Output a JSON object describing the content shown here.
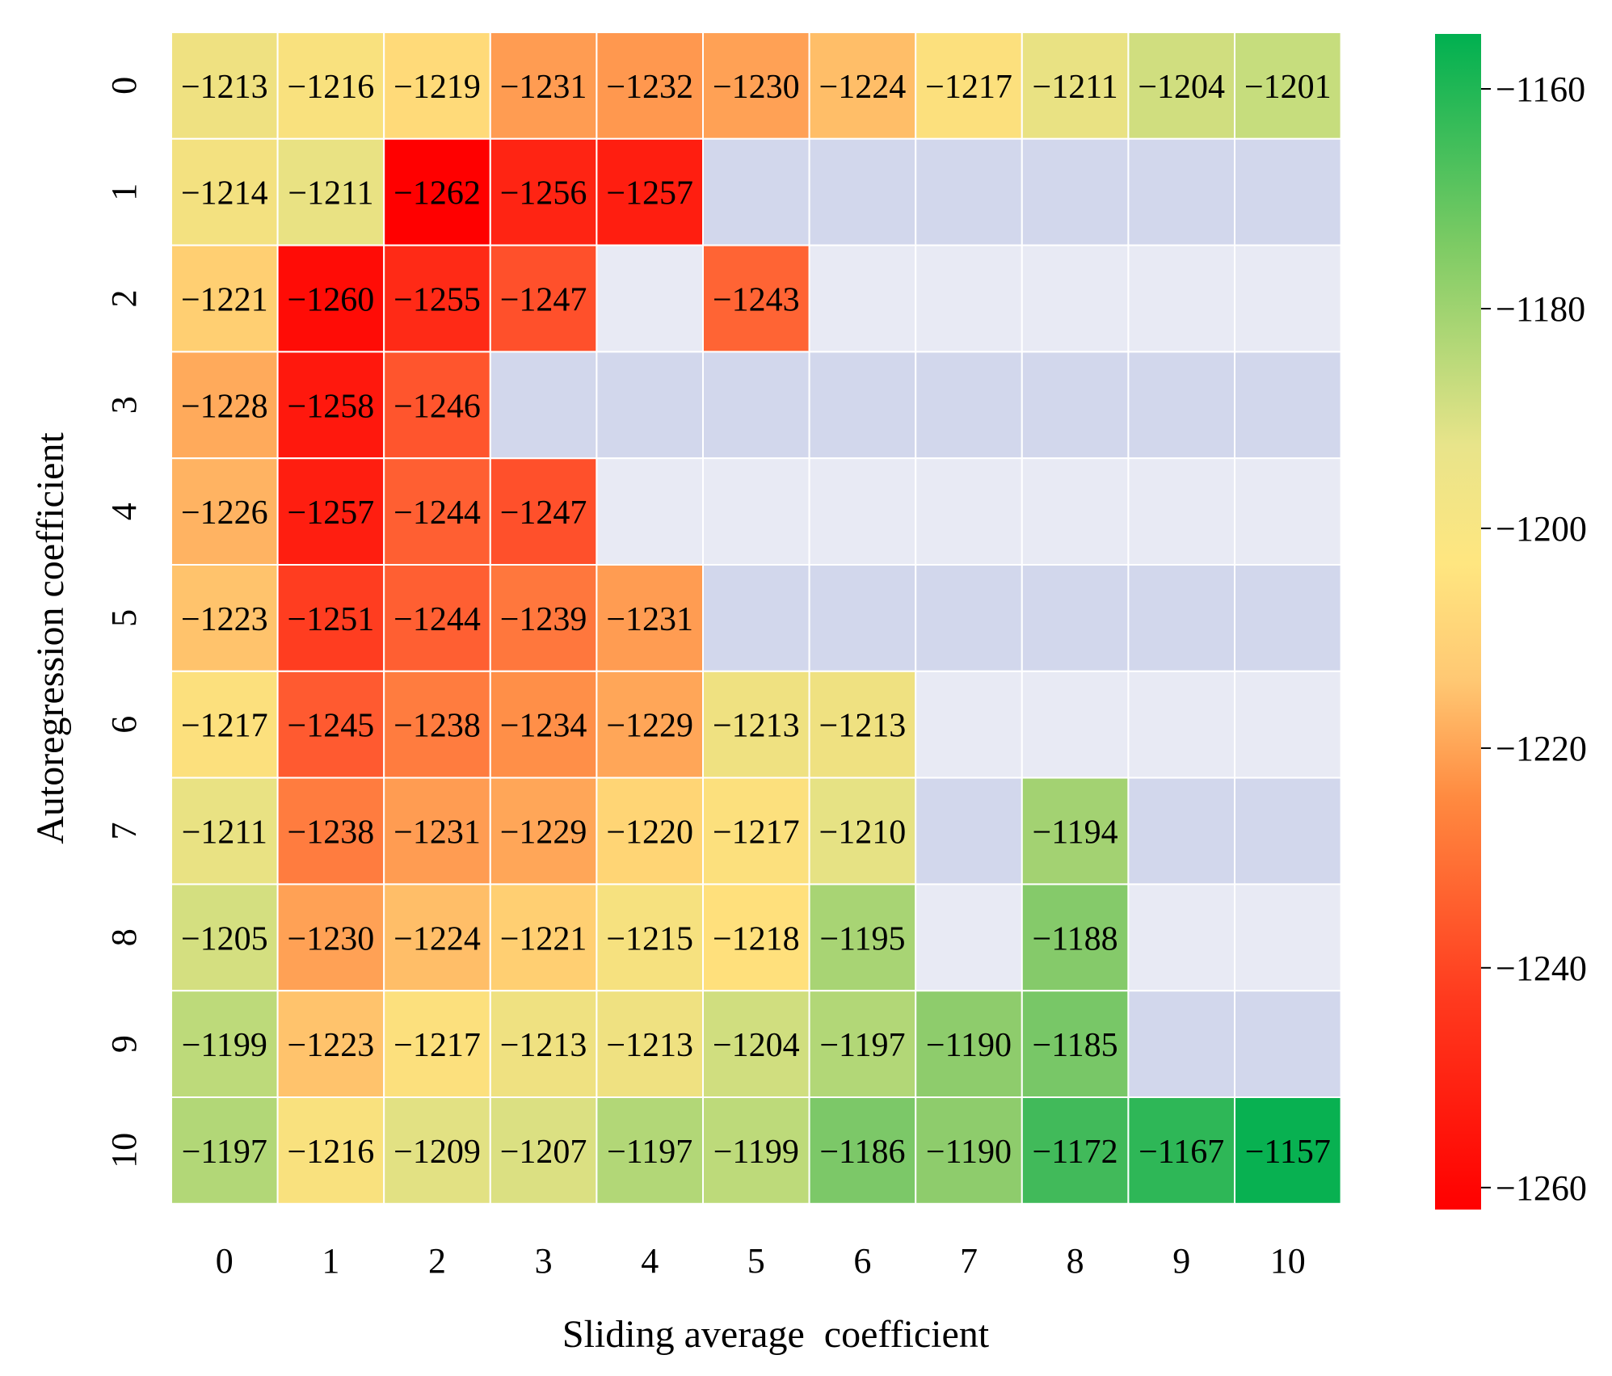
{
  "chart_data": {
    "type": "heatmap",
    "title": "",
    "xlabel": "Sliding average  coefficient",
    "ylabel": "Autoregression coefficient",
    "x_ticks": [
      "0",
      "1",
      "2",
      "3",
      "4",
      "5",
      "6",
      "7",
      "8",
      "9",
      "10"
    ],
    "y_ticks": [
      "0",
      "1",
      "2",
      "3",
      "4",
      "5",
      "6",
      "7",
      "8",
      "9",
      "10"
    ],
    "values": [
      [
        -1213,
        -1216,
        -1219,
        -1231,
        -1232,
        -1230,
        -1224,
        -1217,
        -1211,
        -1204,
        -1201
      ],
      [
        -1214,
        -1211,
        -1262,
        -1256,
        -1257,
        null,
        null,
        null,
        null,
        null,
        null
      ],
      [
        -1221,
        -1260,
        -1255,
        -1247,
        null,
        -1243,
        null,
        null,
        null,
        null,
        null
      ],
      [
        -1228,
        -1258,
        -1246,
        null,
        null,
        null,
        null,
        null,
        null,
        null,
        null
      ],
      [
        -1226,
        -1257,
        -1244,
        -1247,
        null,
        null,
        null,
        null,
        null,
        null,
        null
      ],
      [
        -1223,
        -1251,
        -1244,
        -1239,
        -1231,
        null,
        null,
        null,
        null,
        null,
        null
      ],
      [
        -1217,
        -1245,
        -1238,
        -1234,
        -1229,
        -1213,
        -1213,
        null,
        null,
        null,
        null
      ],
      [
        -1211,
        -1238,
        -1231,
        -1229,
        -1220,
        -1217,
        -1210,
        null,
        -1194,
        null,
        null
      ],
      [
        -1205,
        -1230,
        -1224,
        -1221,
        -1215,
        -1218,
        -1195,
        null,
        -1188,
        null,
        null
      ],
      [
        -1199,
        -1223,
        -1217,
        -1213,
        -1213,
        -1204,
        -1197,
        -1190,
        -1185,
        null,
        null
      ],
      [
        -1197,
        -1216,
        -1209,
        -1207,
        -1197,
        -1199,
        -1186,
        -1190,
        -1172,
        -1167,
        -1157
      ]
    ],
    "colorbar": {
      "range": [
        -1262,
        -1155
      ],
      "ticks": [
        -1160,
        -1180,
        -1200,
        -1220,
        -1240,
        -1260
      ],
      "tick_labels": [
        "−1160",
        "−1180",
        "−1200",
        "−1220",
        "−1240",
        "−1260"
      ]
    },
    "colormap": [
      "#ff0000",
      "#ff7a3d",
      "#ffe680",
      "#e8e48a",
      "#7dcb64",
      "#00b050"
    ],
    "missing_colors": [
      "#d2d7ec",
      "#e8eaf4"
    ],
    "grid": false,
    "legend": "colorbar-right"
  }
}
